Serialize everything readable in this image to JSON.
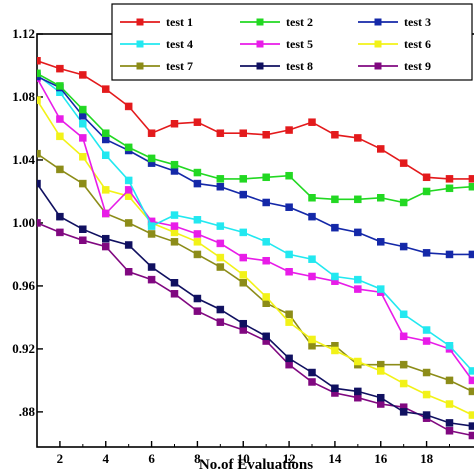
{
  "chart_data": {
    "type": "line",
    "title": "",
    "xlabel": "No.of Evaluations",
    "ylabel": "",
    "xlim": [
      1,
      20
    ],
    "ylim": [
      0.86,
      1.12
    ],
    "xticks": [
      2,
      4,
      6,
      8,
      10,
      12,
      14,
      16,
      18
    ],
    "yticks": [
      0.88,
      0.92,
      0.96,
      1.0,
      1.04,
      1.08,
      1.12
    ],
    "ytick_labels": [
      ".88",
      "0.92",
      "0.96",
      "1.00",
      "1.04",
      "1.08",
      "1.12"
    ],
    "legend_position": "top-right",
    "grid": false,
    "series": [
      {
        "name": "test 1",
        "color": "#e31a1c",
        "marker": "square",
        "x": [
          1,
          2,
          3,
          4,
          5,
          6,
          7,
          8,
          9,
          10,
          11,
          12,
          13,
          14,
          15,
          16,
          17,
          18,
          19,
          20
        ],
        "y": [
          1.103,
          1.098,
          1.094,
          1.085,
          1.074,
          1.057,
          1.063,
          1.064,
          1.057,
          1.057,
          1.056,
          1.059,
          1.064,
          1.056,
          1.054,
          1.047,
          1.038,
          1.029,
          1.028,
          1.028
        ]
      },
      {
        "name": "test 2",
        "color": "#22d822",
        "marker": "square",
        "x": [
          1,
          2,
          3,
          4,
          5,
          6,
          7,
          8,
          9,
          10,
          11,
          12,
          13,
          14,
          15,
          16,
          17,
          18,
          19,
          20
        ],
        "y": [
          1.095,
          1.087,
          1.072,
          1.057,
          1.048,
          1.041,
          1.037,
          1.032,
          1.028,
          1.028,
          1.029,
          1.03,
          1.016,
          1.015,
          1.015,
          1.016,
          1.013,
          1.02,
          1.022,
          1.023
        ]
      },
      {
        "name": "test 3",
        "color": "#1428a8",
        "marker": "square",
        "x": [
          1,
          2,
          3,
          4,
          5,
          6,
          7,
          8,
          9,
          10,
          11,
          12,
          13,
          14,
          15,
          16,
          17,
          18,
          19,
          20
        ],
        "y": [
          1.093,
          1.086,
          1.068,
          1.053,
          1.046,
          1.038,
          1.033,
          1.025,
          1.023,
          1.018,
          1.013,
          1.01,
          1.004,
          0.997,
          0.994,
          0.988,
          0.985,
          0.981,
          0.98,
          0.98
        ]
      },
      {
        "name": "test 4",
        "color": "#22e8f0",
        "marker": "square",
        "x": [
          1,
          2,
          3,
          4,
          5,
          6,
          7,
          8,
          9,
          10,
          11,
          12,
          13,
          14,
          15,
          16,
          17,
          18,
          19,
          20
        ],
        "y": [
          1.094,
          1.083,
          1.063,
          1.043,
          1.027,
          0.998,
          1.005,
          1.002,
          0.998,
          0.994,
          0.988,
          0.98,
          0.977,
          0.966,
          0.964,
          0.958,
          0.942,
          0.932,
          0.922,
          0.906
        ]
      },
      {
        "name": "test 5",
        "color": "#e81ce8",
        "marker": "square",
        "x": [
          1,
          2,
          3,
          4,
          5,
          6,
          7,
          8,
          9,
          10,
          11,
          12,
          13,
          14,
          15,
          16,
          17,
          18,
          19,
          20
        ],
        "y": [
          1.092,
          1.066,
          1.054,
          1.006,
          1.021,
          1.001,
          0.998,
          0.993,
          0.987,
          0.978,
          0.976,
          0.969,
          0.966,
          0.963,
          0.958,
          0.956,
          0.928,
          0.925,
          0.92,
          0.9
        ]
      },
      {
        "name": "test 6",
        "color": "#f2f218",
        "marker": "square",
        "x": [
          1,
          2,
          3,
          4,
          5,
          6,
          7,
          8,
          9,
          10,
          11,
          12,
          13,
          14,
          15,
          16,
          17,
          18,
          19,
          20
        ],
        "y": [
          1.078,
          1.055,
          1.042,
          1.021,
          1.017,
          1.0,
          0.994,
          0.988,
          0.978,
          0.967,
          0.953,
          0.937,
          0.926,
          0.919,
          0.912,
          0.906,
          0.898,
          0.891,
          0.885,
          0.878
        ]
      },
      {
        "name": "test 7",
        "color": "#8c8c18",
        "marker": "square",
        "x": [
          1,
          2,
          3,
          4,
          5,
          6,
          7,
          8,
          9,
          10,
          11,
          12,
          13,
          14,
          15,
          16,
          17,
          18,
          19,
          20
        ],
        "y": [
          1.044,
          1.034,
          1.025,
          1.006,
          1.0,
          0.993,
          0.988,
          0.98,
          0.972,
          0.962,
          0.949,
          0.942,
          0.922,
          0.922,
          0.91,
          0.91,
          0.91,
          0.905,
          0.9,
          0.893
        ]
      },
      {
        "name": "test 8",
        "color": "#101060",
        "marker": "square",
        "x": [
          1,
          2,
          3,
          4,
          5,
          6,
          7,
          8,
          9,
          10,
          11,
          12,
          13,
          14,
          15,
          16,
          17,
          18,
          19,
          20
        ],
        "y": [
          1.025,
          1.004,
          0.996,
          0.99,
          0.986,
          0.972,
          0.962,
          0.952,
          0.945,
          0.936,
          0.928,
          0.914,
          0.905,
          0.895,
          0.893,
          0.889,
          0.88,
          0.878,
          0.873,
          0.871
        ]
      },
      {
        "name": "test 9",
        "color": "#800880",
        "marker": "square",
        "x": [
          1,
          2,
          3,
          4,
          5,
          6,
          7,
          8,
          9,
          10,
          11,
          12,
          13,
          14,
          15,
          16,
          17,
          18,
          19,
          20
        ],
        "y": [
          1.0,
          0.994,
          0.989,
          0.985,
          0.969,
          0.964,
          0.955,
          0.944,
          0.937,
          0.932,
          0.925,
          0.91,
          0.899,
          0.892,
          0.889,
          0.885,
          0.883,
          0.876,
          0.868,
          0.865
        ]
      }
    ]
  }
}
